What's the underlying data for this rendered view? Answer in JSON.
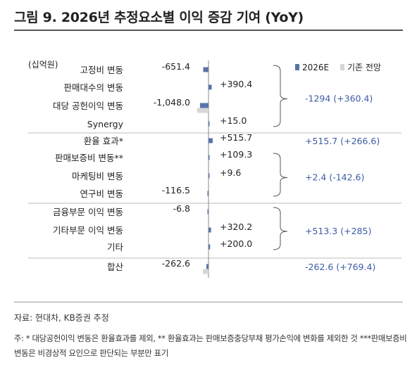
{
  "title": "그림 9. 2026년 추정요소별 이익 증감 기여 (YoY)",
  "unit_label": "(십억원)",
  "source": "자료: 현대차, KB증권 추정",
  "footnote": "주: * 대당공헌이익 변동은 환율효과를 제외, ** 환율효과는 판매보증충당부채 평가손익에 변화를 제외한 것 ***판매보증비 변동은 비경상적 요인으로 판단되는 부분만 표기",
  "colors": {
    "e2026": "#5a74a8",
    "prior": "#d6d6d6",
    "text": "#222222",
    "blue_text": "#3b5ba5",
    "divider": "#bbbbbb"
  },
  "chart_data": {
    "type": "bar",
    "orientation": "horizontal",
    "title": "그림 9. 2026년 추정요소별 이익 증감 기여 (YoY)",
    "ylabel": "(십억원)",
    "legend_position": "top-right",
    "categories": [
      "고정비 변동",
      "판매대수의 변동",
      "대당 공헌이익 변동",
      "Synergy",
      "환율 효과*",
      "판매보증비 변동**",
      "마케팅비 변동",
      "연구비 변동",
      "금융부문 이익 변동",
      "기타부문 이익 변동",
      "기타",
      "합산"
    ],
    "series": [
      {
        "name": "2026E",
        "values": [
          -651.4,
          390.4,
          -1048.0,
          15.0,
          515.7,
          109.3,
          9.6,
          -116.5,
          -6.8,
          320.2,
          200.0,
          -262.6
        ]
      },
      {
        "name": "기존 전망",
        "values": [
          null,
          null,
          -1408.4,
          null,
          null,
          null,
          null,
          null,
          null,
          null,
          null,
          769.4
        ]
      }
    ],
    "value_labels": [
      "-651.4",
      "+390.4",
      "-1,048.0",
      "+15.0",
      "+515.7",
      "+109.3",
      "+9.6",
      "-116.5",
      "-6.8",
      "+320.2",
      "+200.0",
      "-262.6"
    ],
    "groups": [
      {
        "label": "-1294 (+360.4)",
        "rows": [
          0,
          3
        ],
        "bracket": true
      },
      {
        "label": "+515.7 (+266.6)",
        "rows": [
          4,
          4
        ],
        "bracket": false
      },
      {
        "label": "+2.4 (-142.6)",
        "rows": [
          5,
          7
        ],
        "bracket": true
      },
      {
        "label": "+513.3 (+285)",
        "rows": [
          8,
          10
        ],
        "bracket": true
      },
      {
        "label": "-262.6 (+769.4)",
        "rows": [
          11,
          11
        ],
        "bracket": false
      }
    ]
  }
}
